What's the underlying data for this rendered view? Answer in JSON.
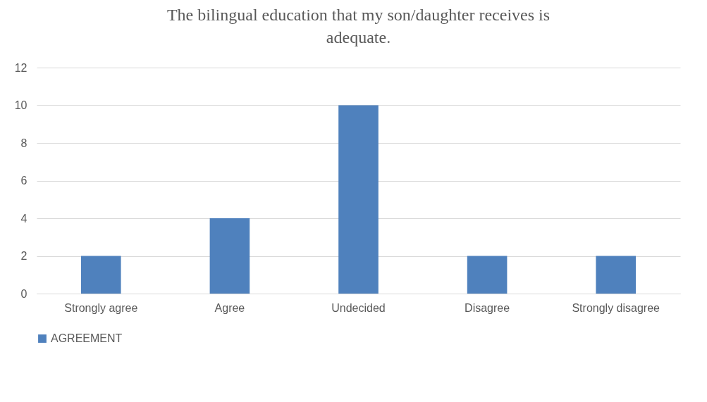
{
  "chart_data": {
    "type": "bar",
    "title": "The bilingual education that my son/daughter receives is adequate.",
    "categories": [
      "Strongly agree",
      "Agree",
      "Undecided",
      "Disagree",
      "Strongly disagree"
    ],
    "series": [
      {
        "name": "AGREEMENT",
        "color": "#4f81bd",
        "values": [
          2,
          4,
          10,
          2,
          2
        ]
      }
    ],
    "ylim": [
      0,
      12
    ],
    "yticks": [
      0,
      2,
      4,
      6,
      8,
      10,
      12
    ],
    "grid": "y",
    "legend": "bottom"
  }
}
